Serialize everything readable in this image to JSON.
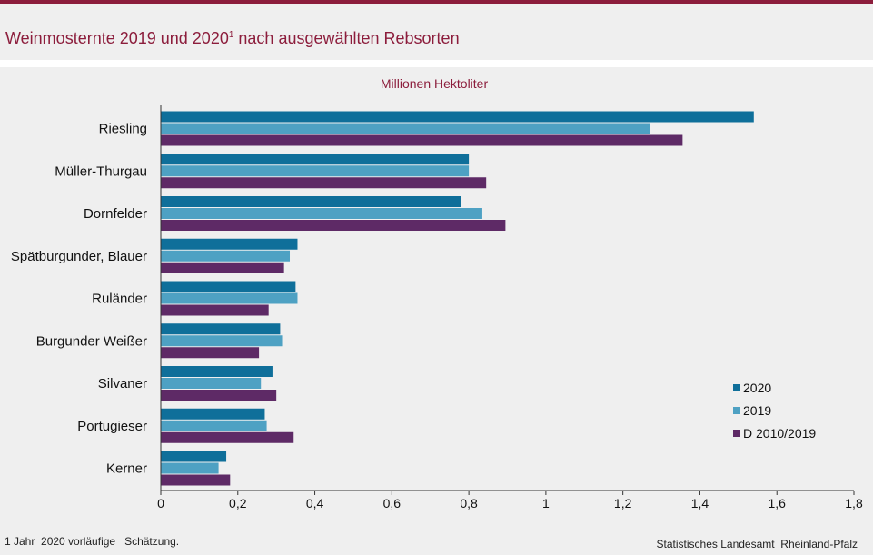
{
  "header": {
    "title": "Weinmosternte 2019 und 2020",
    "title_sup": "1",
    "title_rest": " nach ausgewählten Rebsorten"
  },
  "colors": {
    "accent": "#8c1d3c",
    "series_2020": "#0f6f9a",
    "series_2019": "#4ea1c3",
    "series_avg": "#5e2a66"
  },
  "chart_data": {
    "type": "bar",
    "orientation": "horizontal",
    "unit_label": "Millionen Hektoliter",
    "categories": [
      "Riesling",
      "Müller-Thurgau",
      "Dornfelder",
      "Spätburgunder, Blauer",
      "Ruländer",
      "Burgunder Weißer",
      "Silvaner",
      "Portugieser",
      "Kerner"
    ],
    "series": [
      {
        "name": "2020",
        "values": [
          1.54,
          0.8,
          0.78,
          0.355,
          0.35,
          0.31,
          0.29,
          0.27,
          0.17
        ]
      },
      {
        "name": "2019",
        "values": [
          1.27,
          0.8,
          0.835,
          0.335,
          0.355,
          0.315,
          0.26,
          0.275,
          0.15
        ]
      },
      {
        "name": "D 2010/2019",
        "values": [
          1.355,
          0.845,
          0.895,
          0.32,
          0.28,
          0.255,
          0.3,
          0.345,
          0.18
        ]
      }
    ],
    "xlim": [
      0,
      1.8
    ],
    "xticks": [
      "0",
      "0,2",
      "0,4",
      "0,6",
      "0,8",
      "1",
      "1,2",
      "1,4",
      "1,6",
      "1,8"
    ],
    "legend_position": "right"
  },
  "footer": {
    "footnote": "1 Jahr  2020 vorläufige   Schätzung.",
    "source": "Statistisches Landesamt  Rheinland-Pfalz"
  }
}
